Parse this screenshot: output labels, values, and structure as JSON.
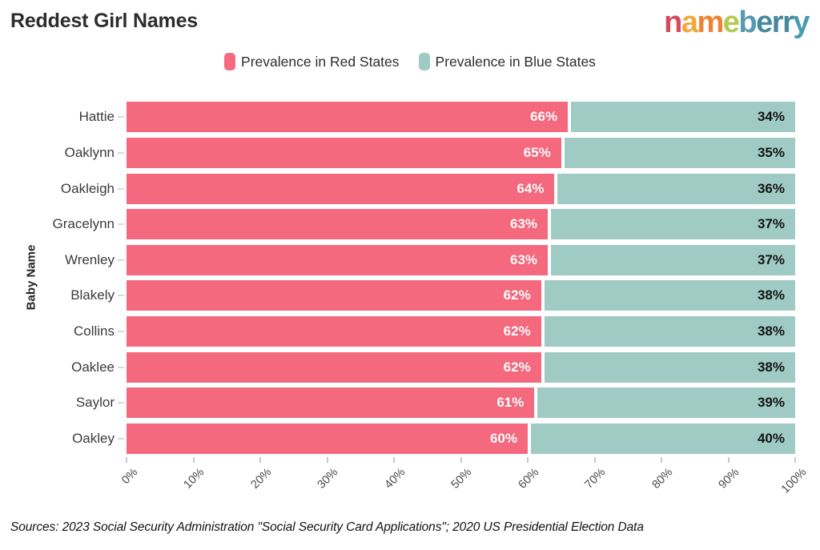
{
  "page": {
    "title": "Reddest Girl Names",
    "footer": "Sources: 2023 Social Security Administration \"Social Security Card Applications\"; 2020 US Presidential Election Data"
  },
  "logo": {
    "name": "nameberry",
    "letters": [
      {
        "ch": "n",
        "color": "#d64a5c"
      },
      {
        "ch": "a",
        "color": "#f2a83c"
      },
      {
        "ch": "m",
        "color": "#ee8133"
      },
      {
        "ch": "e",
        "color": "#b2cb52"
      },
      {
        "ch": "b",
        "color": "#569ab1"
      },
      {
        "ch": "e",
        "color": "#47899c"
      },
      {
        "ch": "r",
        "color": "#47899c"
      },
      {
        "ch": "r",
        "color": "#47899c"
      },
      {
        "ch": "y",
        "color": "#4a9ab0"
      }
    ]
  },
  "legend": {
    "items": [
      {
        "label": "Prevalence in Red States",
        "color": "#f5697e"
      },
      {
        "label": "Prevalence in Blue States",
        "color": "#a0cbc5"
      }
    ]
  },
  "chart_data": {
    "type": "bar",
    "orientation": "horizontal",
    "stacked": true,
    "title": "Reddest Girl Names",
    "ylabel": "Baby Name",
    "xlabel": "",
    "xlim": [
      0,
      100
    ],
    "x_tick_labels": [
      "0%",
      "10%",
      "20%",
      "30%",
      "40%",
      "50%",
      "60%",
      "70%",
      "80%",
      "90%",
      "100%"
    ],
    "categories": [
      "Hattie",
      "Oaklynn",
      "Oakleigh",
      "Gracelynn",
      "Wrenley",
      "Blakely",
      "Collins",
      "Oaklee",
      "Saylor",
      "Oakley"
    ],
    "series": [
      {
        "name": "Prevalence in Red States",
        "color": "#f5697e",
        "values": [
          66,
          65,
          64,
          63,
          63,
          62,
          62,
          62,
          61,
          60
        ],
        "value_labels": [
          "66%",
          "65%",
          "64%",
          "63%",
          "63%",
          "62%",
          "62%",
          "62%",
          "61%",
          "60%"
        ]
      },
      {
        "name": "Prevalence in Blue States",
        "color": "#a0cbc5",
        "values": [
          34,
          35,
          36,
          37,
          37,
          38,
          38,
          38,
          39,
          40
        ],
        "value_labels": [
          "34%",
          "35%",
          "36%",
          "37%",
          "37%",
          "38%",
          "38%",
          "38%",
          "39%",
          "40%"
        ]
      }
    ],
    "legend_position": "top-center",
    "grid": false
  }
}
